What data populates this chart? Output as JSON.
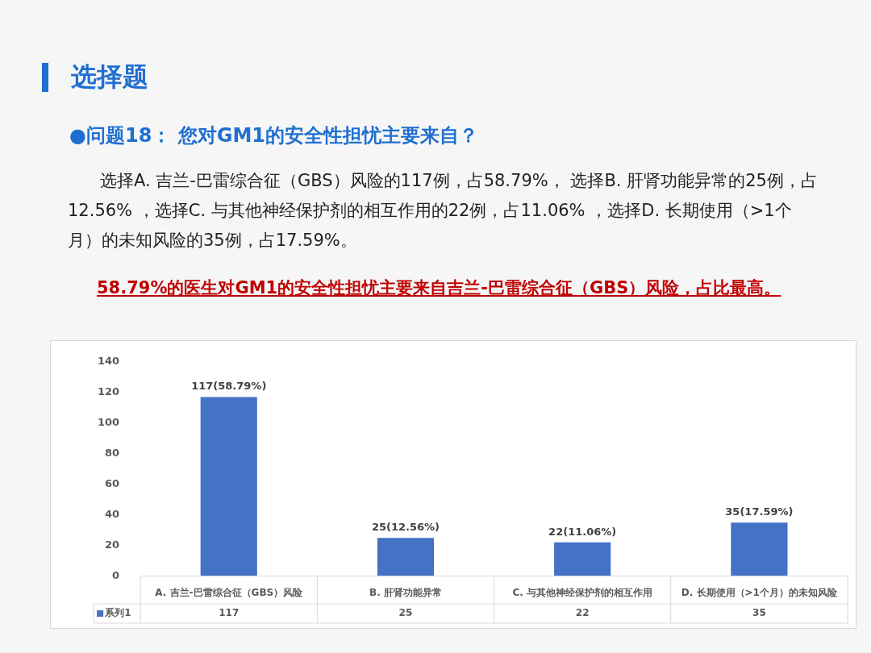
{
  "chart_data": {
    "type": "bar",
    "title": "选择题",
    "subtitle": "●问题18：  您对GM1的安全性担忧主要来自？",
    "annotations": [
      "选择A. 吉兰-巴雷综合征（GBS）风险的117例，占58.79%， 选择B. 肝肾功能异常的25例，占12.56% ，选择C. 与其他神经保护剂的相互作用的22例，占11.06% ，选择D. 长期使用（>1个月）的未知风险的35例，占17.59%。",
      "58.79%的医生对GM1的安全性担忧主要来自吉兰-巴雷综合征（GBS）风险，占比最高。",
      {
        "text": "117(58.79%)",
        "x": "A. 吉兰-巴雷综合征（GBS）风险",
        "y": 117
      },
      {
        "text": "25(12.56%)",
        "x": "B. 肝肾功能异常",
        "y": 25
      },
      {
        "text": "22(11.06%)",
        "x": "C. 与其他神经保护剂的相互作用",
        "y": 22
      },
      {
        "text": "35(17.59%)",
        "x": "D. 长期使用（>1个月）的未知风险",
        "y": 35
      }
    ],
    "categories": [
      "A. 吉兰-巴雷综合征（GBS）风险",
      "B. 肝肾功能异常",
      "C. 与其他神经保护剂的相互作用",
      "D. 长期使用（>1个月）的未知风险"
    ],
    "series": [
      {
        "name": "系列1",
        "color": "#4472c4",
        "values": [
          117,
          25,
          22,
          35
        ]
      }
    ],
    "ylim": [
      0,
      140
    ],
    "yticks": [
      0,
      20,
      40,
      60,
      80,
      100,
      120,
      140
    ],
    "grid": false,
    "data_labels": true
  }
}
